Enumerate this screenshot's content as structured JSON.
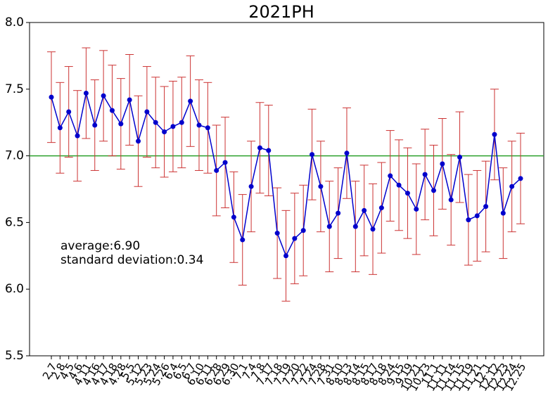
{
  "chart_data": {
    "type": "errorline",
    "title": "2021PH",
    "categories": [
      "2.7",
      "2.8",
      "4.5",
      "4.6",
      "4.11",
      "4.16",
      "4.17",
      "4.18",
      "4.28",
      "5.5",
      "5.12",
      "5.23",
      "5.24",
      "5.26",
      "6.4",
      "6.5",
      "6.7",
      "6.10",
      "6.11",
      "6.28",
      "6.29",
      "6.30",
      "7.1",
      "7.4",
      "7.8",
      "7.17",
      "7.18",
      "7.19",
      "7.20",
      "7.22",
      "7.24",
      "7.28",
      "7.31",
      "8.10",
      "8.13",
      "8.14",
      "8.15",
      "8.17",
      "8.18",
      "8.24",
      "9.15",
      "9.19",
      "10.21",
      "10.23",
      "11.1",
      "11.11",
      "11.14",
      "11.15",
      "11.19",
      "11.21",
      "12.1",
      "12.12",
      "12.23",
      "12.24",
      "12.25"
    ],
    "values": [
      7.44,
      7.21,
      7.33,
      7.15,
      7.47,
      7.23,
      7.45,
      7.34,
      7.24,
      7.42,
      7.11,
      7.33,
      7.25,
      7.18,
      7.22,
      7.25,
      7.41,
      7.23,
      7.21,
      6.89,
      6.95,
      6.54,
      6.37,
      6.77,
      7.06,
      7.04,
      6.42,
      6.25,
      6.38,
      6.44,
      7.01,
      6.77,
      6.47,
      6.57,
      7.02,
      6.47,
      6.59,
      6.45,
      6.61,
      6.85,
      6.78,
      6.72,
      6.6,
      6.86,
      6.74,
      6.94,
      6.67,
      6.99,
      6.52,
      6.55,
      6.62,
      7.16,
      6.57,
      6.77,
      6.83
    ],
    "error": 0.34,
    "color": "#0000cc",
    "error_color": "#cc3333",
    "reference_line": 7.0,
    "reference_color": "#2ca02c",
    "annotations": [
      "average:6.90",
      "standard deviation:0.34"
    ],
    "ylim": [
      5.5,
      8.0
    ],
    "yticks": [
      {
        "value": 5.5,
        "label": "5.5"
      },
      {
        "value": 6,
        "label": "6.0"
      },
      {
        "value": 6.5,
        "label": "6.5"
      },
      {
        "value": 7,
        "label": "7.0"
      },
      {
        "value": 7.5,
        "label": "7.5"
      },
      {
        "value": 8,
        "label": "8.0"
      }
    ]
  }
}
